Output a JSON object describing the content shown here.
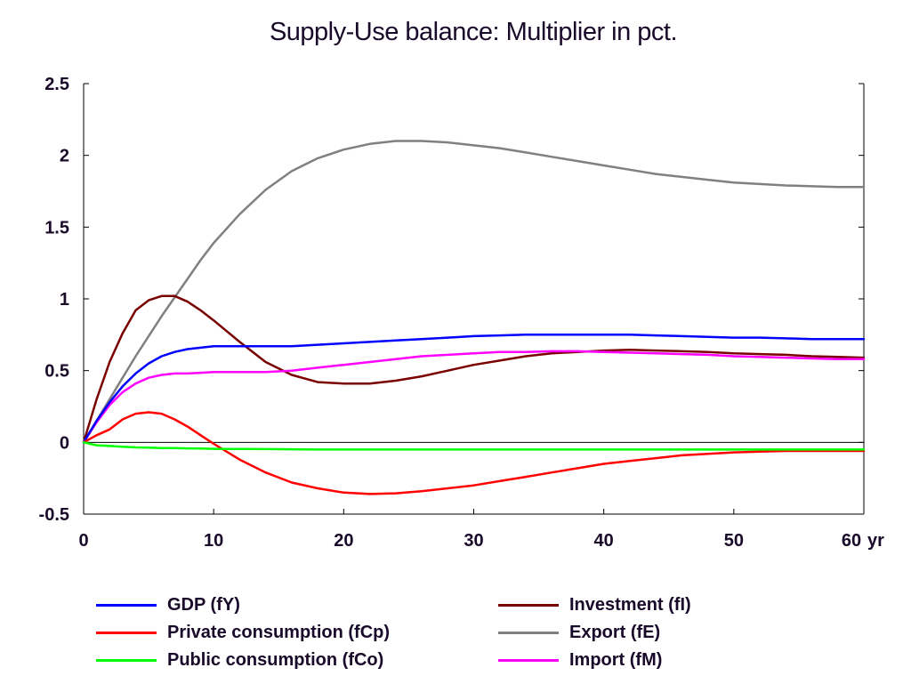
{
  "chart_data": {
    "type": "line",
    "title": "Supply-Use balance: Multiplier in pct.",
    "xlabel": "",
    "ylabel": "",
    "x_unit_label": "yr",
    "xlim": [
      0,
      60
    ],
    "ylim": [
      -0.5,
      2.5
    ],
    "x_ticks": [
      "0",
      "10",
      "20",
      "30",
      "40",
      "50",
      "60"
    ],
    "y_ticks": [
      "2.5",
      "2",
      "1.5",
      "1",
      "0.5",
      "0",
      "-0.5"
    ],
    "x": [
      0,
      1,
      2,
      3,
      4,
      5,
      6,
      7,
      8,
      9,
      10,
      12,
      14,
      16,
      18,
      20,
      22,
      24,
      26,
      28,
      30,
      32,
      34,
      36,
      38,
      40,
      42,
      44,
      46,
      48,
      50,
      52,
      54,
      56,
      58,
      60
    ],
    "series": [
      {
        "name": "GDP (fY)",
        "color": "#0000ff",
        "values": [
          0,
          0.15,
          0.28,
          0.39,
          0.48,
          0.55,
          0.6,
          0.63,
          0.65,
          0.66,
          0.67,
          0.67,
          0.67,
          0.67,
          0.68,
          0.69,
          0.7,
          0.71,
          0.72,
          0.73,
          0.74,
          0.745,
          0.75,
          0.75,
          0.75,
          0.75,
          0.75,
          0.745,
          0.74,
          0.735,
          0.73,
          0.73,
          0.725,
          0.72,
          0.72,
          0.72
        ]
      },
      {
        "name": "Private consumption (fCp)",
        "color": "#ff0000",
        "values": [
          0,
          0.05,
          0.09,
          0.16,
          0.2,
          0.21,
          0.2,
          0.16,
          0.11,
          0.05,
          -0.01,
          -0.12,
          -0.21,
          -0.28,
          -0.32,
          -0.35,
          -0.36,
          -0.355,
          -0.34,
          -0.32,
          -0.3,
          -0.27,
          -0.24,
          -0.21,
          -0.18,
          -0.15,
          -0.13,
          -0.11,
          -0.09,
          -0.08,
          -0.07,
          -0.065,
          -0.06,
          -0.06,
          -0.06,
          -0.06
        ]
      },
      {
        "name": "Public consumption (fCo)",
        "color": "#00ff00",
        "values": [
          0,
          -0.02,
          -0.025,
          -0.03,
          -0.035,
          -0.037,
          -0.04,
          -0.04,
          -0.042,
          -0.043,
          -0.045,
          -0.046,
          -0.047,
          -0.048,
          -0.05,
          -0.05,
          -0.05,
          -0.05,
          -0.05,
          -0.05,
          -0.05,
          -0.05,
          -0.05,
          -0.05,
          -0.05,
          -0.05,
          -0.05,
          -0.05,
          -0.05,
          -0.05,
          -0.05,
          -0.05,
          -0.05,
          -0.05,
          -0.05,
          -0.05
        ]
      },
      {
        "name": "Investment (fI)",
        "color": "#7a0000",
        "values": [
          0,
          0.3,
          0.56,
          0.76,
          0.92,
          0.99,
          1.02,
          1.02,
          0.98,
          0.92,
          0.85,
          0.7,
          0.56,
          0.47,
          0.42,
          0.41,
          0.41,
          0.43,
          0.46,
          0.5,
          0.54,
          0.57,
          0.6,
          0.62,
          0.63,
          0.64,
          0.645,
          0.64,
          0.635,
          0.63,
          0.62,
          0.615,
          0.61,
          0.6,
          0.595,
          0.59
        ]
      },
      {
        "name": "Export (fE)",
        "color": "#808080",
        "values": [
          0,
          0.15,
          0.3,
          0.45,
          0.6,
          0.74,
          0.88,
          1.01,
          1.14,
          1.27,
          1.39,
          1.59,
          1.76,
          1.89,
          1.98,
          2.04,
          2.08,
          2.1,
          2.1,
          2.09,
          2.07,
          2.05,
          2.02,
          1.99,
          1.96,
          1.93,
          1.9,
          1.87,
          1.85,
          1.83,
          1.81,
          1.8,
          1.79,
          1.785,
          1.78,
          1.78
        ]
      },
      {
        "name": "Import (fM)",
        "color": "#ff00ff",
        "values": [
          0,
          0.14,
          0.26,
          0.35,
          0.41,
          0.45,
          0.47,
          0.48,
          0.48,
          0.485,
          0.49,
          0.49,
          0.49,
          0.5,
          0.52,
          0.54,
          0.56,
          0.58,
          0.6,
          0.61,
          0.62,
          0.63,
          0.63,
          0.635,
          0.635,
          0.63,
          0.625,
          0.62,
          0.615,
          0.61,
          0.6,
          0.595,
          0.59,
          0.585,
          0.58,
          0.58
        ]
      }
    ],
    "zero_line": true,
    "grid": false,
    "legend_position": "bottom"
  }
}
